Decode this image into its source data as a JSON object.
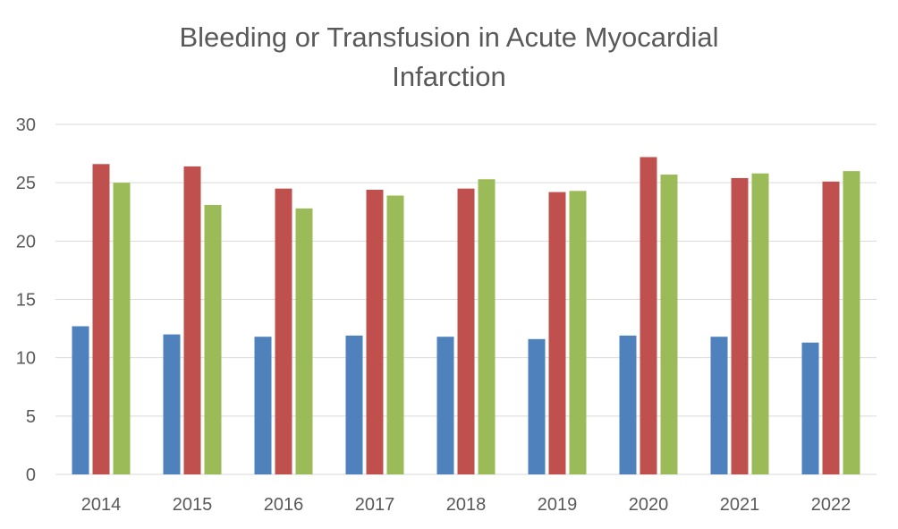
{
  "chart_data": {
    "type": "bar",
    "title_lines": [
      "Bleeding or Transfusion in Acute Myocardial",
      "Infarction"
    ],
    "xlabel": "",
    "ylabel": "",
    "ylim": [
      0,
      30
    ],
    "yticks": [
      0,
      5,
      10,
      15,
      20,
      25,
      30
    ],
    "grid": true,
    "legend": "none",
    "categories": [
      "2014",
      "2015",
      "2016",
      "2017",
      "2018",
      "2019",
      "2020",
      "2021",
      "2022"
    ],
    "series": [
      {
        "color": "#4F81BD",
        "values": [
          12.7,
          12.0,
          11.8,
          11.9,
          11.8,
          11.6,
          11.9,
          11.8,
          11.3
        ]
      },
      {
        "color": "#C0504D",
        "values": [
          26.6,
          26.4,
          24.5,
          24.4,
          24.5,
          24.2,
          27.2,
          25.4,
          25.1
        ]
      },
      {
        "color": "#9BBB59",
        "values": [
          25.0,
          23.1,
          22.8,
          23.9,
          25.3,
          24.3,
          25.7,
          25.8,
          26.0
        ]
      }
    ]
  }
}
